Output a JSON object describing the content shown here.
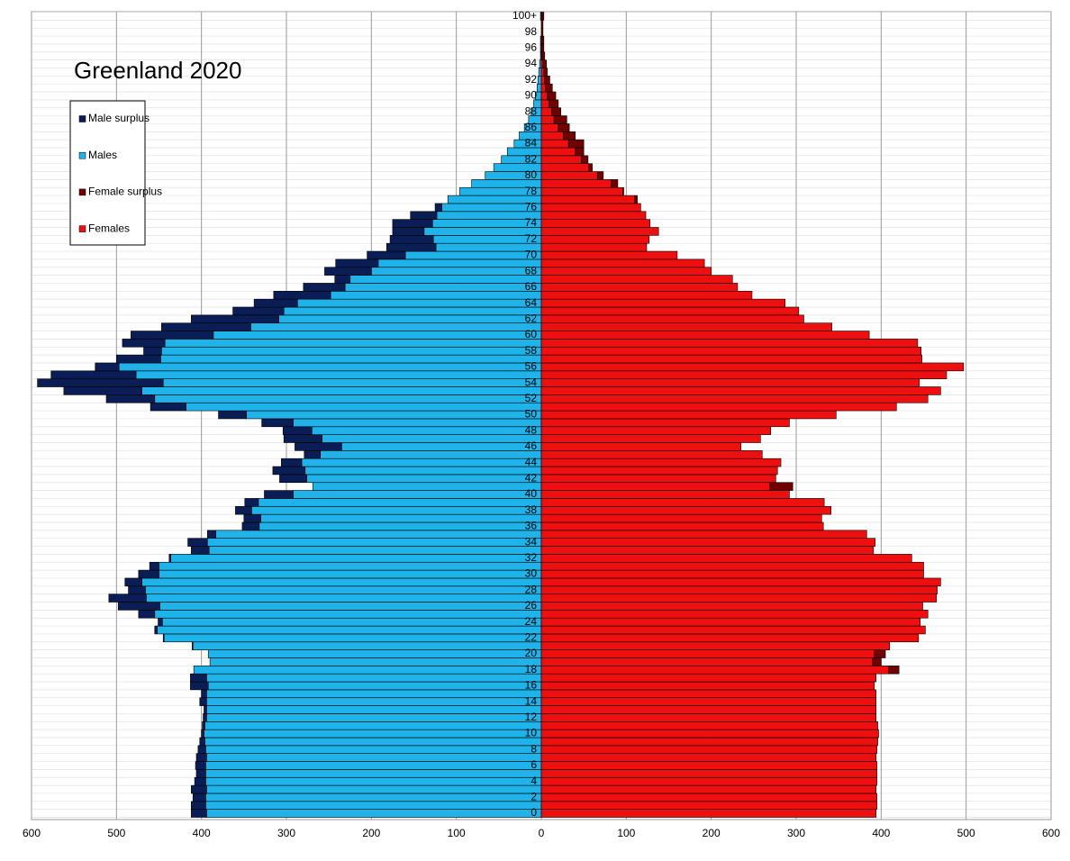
{
  "chart_data": {
    "type": "pyramid",
    "title": "Greenland 2020",
    "categories": [
      "0",
      null,
      "2",
      null,
      "4",
      null,
      "6",
      null,
      "8",
      null,
      "10",
      null,
      "12",
      null,
      "14",
      null,
      "16",
      null,
      "18",
      null,
      "20",
      null,
      "22",
      null,
      "24",
      null,
      "26",
      null,
      "28",
      null,
      "30",
      null,
      "32",
      null,
      "34",
      null,
      "36",
      null,
      "38",
      null,
      "40",
      null,
      "42",
      null,
      "44",
      null,
      "46",
      null,
      "48",
      null,
      "50",
      null,
      "52",
      null,
      "54",
      null,
      "56",
      null,
      "58",
      null,
      "60",
      null,
      "62",
      null,
      "64",
      null,
      "66",
      null,
      "68",
      null,
      "70",
      null,
      "72",
      null,
      "74",
      null,
      "76",
      null,
      "78",
      null,
      "80",
      null,
      "82",
      null,
      "84",
      null,
      "86",
      null,
      "88",
      null,
      "90",
      null,
      "92",
      null,
      "94",
      null,
      "96",
      null,
      "98",
      null,
      "100+"
    ],
    "series": [
      {
        "name": "Male surplus",
        "color": "#0b1d55",
        "values": [
          18,
          17,
          15,
          18,
          13,
          11,
          12,
          12,
          9,
          6,
          3,
          3,
          4,
          3,
          8,
          6,
          21,
          19,
          0,
          0,
          0,
          1,
          1,
          3,
          5,
          19,
          49,
          44,
          20,
          20,
          24,
          11,
          2,
          21,
          23,
          10,
          20,
          20,
          19,
          16,
          34,
          0,
          32,
          38,
          24,
          19,
          55,
          45,
          34,
          37,
          33,
          42,
          57,
          92,
          148,
          100,
          28,
          52,
          21,
          50,
          97,
          105,
          103,
          60,
          51,
          67,
          49,
          18,
          55,
          50,
          45,
          58,
          51,
          37,
          47,
          31,
          8,
          0,
          0,
          0,
          0,
          0,
          0,
          0,
          0,
          0,
          0,
          0,
          0,
          0,
          0,
          0,
          0,
          0,
          0,
          0,
          0,
          0,
          0,
          0,
          0
        ]
      },
      {
        "name": "Males",
        "color": "#1fb3ea",
        "values": [
          394,
          395,
          395,
          394,
          395,
          395,
          395,
          394,
          395,
          396,
          397,
          396,
          394,
          394,
          394,
          394,
          392,
          394,
          409,
          390,
          392,
          410,
          444,
          452,
          446,
          455,
          449,
          465,
          466,
          470,
          450,
          450,
          436,
          391,
          393,
          383,
          332,
          330,
          341,
          333,
          292,
          269,
          276,
          278,
          282,
          260,
          235,
          258,
          270,
          292,
          347,
          418,
          455,
          470,
          445,
          477,
          497,
          448,
          447,
          443,
          386,
          342,
          309,
          303,
          287,
          248,
          231,
          225,
          200,
          192,
          160,
          124,
          127,
          138,
          128,
          123,
          117,
          110,
          96,
          82,
          66,
          56,
          47,
          40,
          32,
          26,
          20,
          15,
          12,
          9,
          7,
          5,
          4,
          3,
          2,
          1,
          1,
          1,
          0,
          0,
          1
        ]
      },
      {
        "name": "Female surplus",
        "color": "#6e0000",
        "values": [
          0,
          0,
          0,
          0,
          0,
          0,
          0,
          0,
          0,
          0,
          0,
          0,
          0,
          0,
          0,
          0,
          0,
          0,
          12,
          10,
          13,
          0,
          0,
          0,
          0,
          0,
          0,
          0,
          0,
          0,
          0,
          0,
          0,
          0,
          0,
          0,
          0,
          0,
          0,
          0,
          0,
          27,
          0,
          0,
          0,
          0,
          0,
          0,
          0,
          0,
          0,
          0,
          0,
          0,
          0,
          0,
          0,
          0,
          0,
          0,
          0,
          0,
          0,
          0,
          0,
          0,
          0,
          0,
          0,
          0,
          0,
          0,
          0,
          0,
          0,
          0,
          0,
          3,
          1,
          8,
          7,
          4,
          8,
          10,
          18,
          14,
          13,
          15,
          11,
          11,
          10,
          8,
          6,
          4,
          4,
          3,
          2,
          2,
          2,
          2,
          2
        ]
      },
      {
        "name": "Females",
        "color": "#ee1010",
        "values": [
          394,
          395,
          395,
          394,
          395,
          395,
          395,
          394,
          395,
          396,
          397,
          396,
          394,
          394,
          394,
          394,
          392,
          394,
          409,
          390,
          392,
          410,
          444,
          452,
          446,
          455,
          449,
          465,
          466,
          470,
          450,
          450,
          436,
          391,
          393,
          383,
          332,
          330,
          341,
          333,
          292,
          269,
          276,
          278,
          282,
          260,
          235,
          258,
          270,
          292,
          347,
          418,
          455,
          470,
          445,
          477,
          497,
          448,
          447,
          443,
          386,
          342,
          309,
          303,
          287,
          248,
          231,
          225,
          200,
          192,
          160,
          124,
          127,
          138,
          128,
          123,
          117,
          110,
          96,
          82,
          66,
          56,
          47,
          40,
          32,
          26,
          20,
          15,
          12,
          9,
          7,
          5,
          4,
          3,
          2,
          1,
          1,
          1,
          0,
          0,
          1
        ]
      }
    ],
    "xlim": [
      -600,
      600
    ],
    "xticks": [
      {
        "value": -600,
        "label": "600"
      },
      {
        "value": -500,
        "label": "500"
      },
      {
        "value": -400,
        "label": "400"
      },
      {
        "value": -300,
        "label": "300"
      },
      {
        "value": -200,
        "label": "200"
      },
      {
        "value": -100,
        "label": "100"
      },
      0,
      100,
      200,
      300,
      400,
      500,
      600
    ],
    "grid": true
  }
}
